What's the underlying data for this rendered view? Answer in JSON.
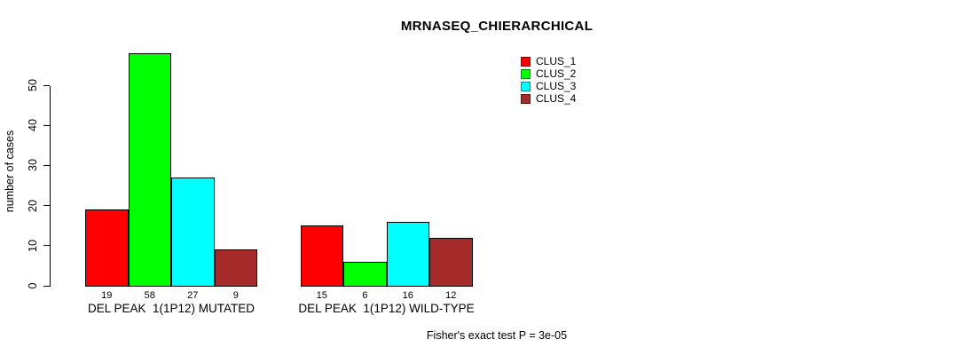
{
  "chart_data": {
    "type": "bar",
    "title": "MRNASEQ_CHIERARCHICAL",
    "ylabel": "number of cases",
    "footnote": "Fisher's exact test P = 3e-05",
    "ylim": [
      0,
      50
    ],
    "yticks": [
      0,
      10,
      20,
      30,
      40,
      50
    ],
    "grid": false,
    "legend_position": "top-right",
    "categories": [
      "DEL PEAK  1(1P12) MUTATED",
      "DEL PEAK  1(1P12) WILD-TYPE"
    ],
    "series": [
      {
        "name": "CLUS_1",
        "color": "#ff0000",
        "values": [
          19,
          15
        ]
      },
      {
        "name": "CLUS_2",
        "color": "#00ff00",
        "values": [
          58,
          6
        ]
      },
      {
        "name": "CLUS_3",
        "color": "#00ffff",
        "values": [
          27,
          16
        ]
      },
      {
        "name": "CLUS_4",
        "color": "#a52a2a",
        "values": [
          9,
          12
        ]
      }
    ],
    "bar_value_labels": [
      [
        "19",
        "58",
        "27",
        "9"
      ],
      [
        "15",
        "6",
        "16",
        "12"
      ]
    ]
  }
}
